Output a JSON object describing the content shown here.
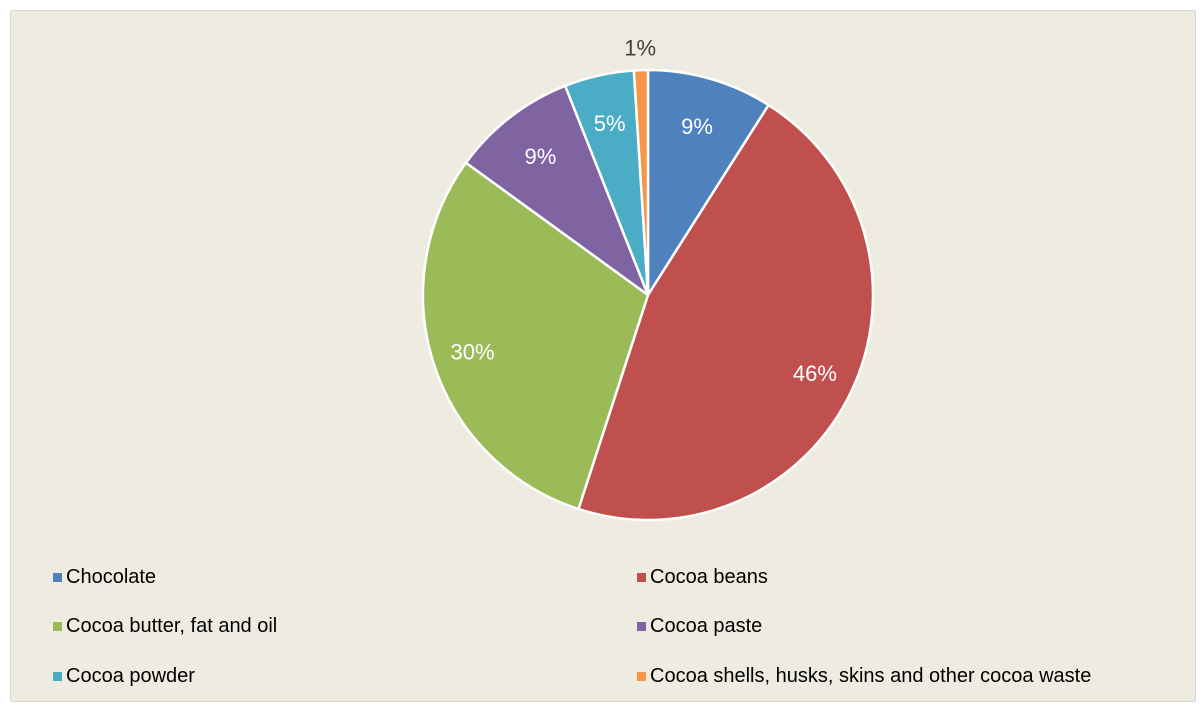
{
  "chart_data": {
    "type": "pie",
    "slices": [
      {
        "label": "Chocolate",
        "value": 9,
        "value_label": "9%",
        "color": "#4f81bd"
      },
      {
        "label": "Cocoa beans",
        "value": 46,
        "value_label": "46%",
        "color": "#c0504d"
      },
      {
        "label": "Cocoa butter, fat and oil",
        "value": 30,
        "value_label": "30%",
        "color": "#9bbb59"
      },
      {
        "label": "Cocoa paste",
        "value": 9,
        "value_label": "9%",
        "color": "#8064a2"
      },
      {
        "label": "Cocoa powder",
        "value": 5,
        "value_label": "5%",
        "color": "#4bacc6"
      },
      {
        "label": "Cocoa shells, husks, skins and other cocoa waste",
        "value": 1,
        "value_label": "1%",
        "color": "#f79646"
      }
    ],
    "start_angle": "top",
    "direction": "clockwise",
    "legend_position": "bottom",
    "background_color": "#eeebe0"
  }
}
